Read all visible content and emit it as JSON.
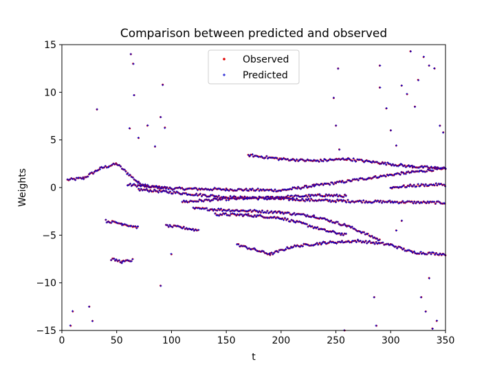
{
  "chart_data": {
    "type": "scatter",
    "title": "Comparison between predicted and observed",
    "xlabel": "t",
    "ylabel": "Weights",
    "xlim": [
      0,
      350
    ],
    "ylim": [
      -15,
      15
    ],
    "xticks": [
      0,
      50,
      100,
      150,
      200,
      250,
      300,
      350
    ],
    "yticks": [
      -15,
      -10,
      -5,
      0,
      5,
      10,
      15
    ],
    "grid": false,
    "legend_position": "top-center",
    "series": [
      {
        "name": "Observed",
        "color": "#e00000",
        "marker": "small dot",
        "description": "Scattered points tracing multiple weight trajectories over t; values range across the full y-axis with dense banded trajectories near -7 to 3 and sparse outliers up to 14 and down to -15."
      },
      {
        "name": "Predicted",
        "color": "#0000cc",
        "marker": "plus",
        "description": "Predicted points closely overlaying the observed trajectories."
      }
    ],
    "trajectories": [
      {
        "x": [
          5,
          20,
          35,
          50,
          60,
          70,
          80,
          95
        ],
        "y": [
          0.8,
          1.0,
          2.0,
          2.5,
          1.5,
          0.5,
          0.1,
          0
        ]
      },
      {
        "x": [
          60,
          100,
          150,
          200,
          230,
          250,
          280,
          310,
          350
        ],
        "y": [
          0.3,
          -0.1,
          -0.2,
          -0.3,
          0.2,
          0.5,
          1.0,
          1.5,
          2.0
        ]
      },
      {
        "x": [
          70,
          100,
          150,
          200,
          250,
          300,
          350
        ],
        "y": [
          -0.2,
          -0.5,
          -1.0,
          -1.2,
          -1.4,
          -1.5,
          -1.6
        ]
      },
      {
        "x": [
          110,
          150,
          200,
          240,
          260
        ],
        "y": [
          -1.5,
          -1.2,
          -1.0,
          -0.8,
          -0.9
        ]
      },
      {
        "x": [
          120,
          160,
          200,
          230,
          260,
          290
        ],
        "y": [
          -2.2,
          -2.4,
          -2.6,
          -3.0,
          -4.0,
          -5.5
        ]
      },
      {
        "x": [
          140,
          170,
          200,
          220,
          240,
          260
        ],
        "y": [
          -2.8,
          -2.9,
          -3.2,
          -3.8,
          -4.5,
          -5.0
        ]
      },
      {
        "x": [
          170,
          200,
          230,
          260,
          290,
          320,
          350
        ],
        "y": [
          3.4,
          3.0,
          2.8,
          3.0,
          2.6,
          2.2,
          2.0
        ]
      },
      {
        "x": [
          160,
          190,
          210,
          240,
          270,
          300,
          320,
          350
        ],
        "y": [
          -6.0,
          -7.0,
          -6.2,
          -5.8,
          -5.6,
          -6.0,
          -6.8,
          -7.0
        ]
      },
      {
        "x": [
          40,
          55,
          70
        ],
        "y": [
          -3.5,
          -3.8,
          -4.2
        ]
      },
      {
        "x": [
          45,
          55,
          65
        ],
        "y": [
          -7.5,
          -7.8,
          -7.6
        ]
      },
      {
        "x": [
          95,
          110,
          125
        ],
        "y": [
          -4.0,
          -4.2,
          -4.5
        ]
      },
      {
        "x": [
          300,
          320,
          340,
          350
        ],
        "y": [
          0,
          0.2,
          0.3,
          0.3
        ]
      }
    ],
    "outliers": [
      {
        "x": 8,
        "y": -14.5
      },
      {
        "x": 10,
        "y": -13
      },
      {
        "x": 25,
        "y": -12.5
      },
      {
        "x": 28,
        "y": -14
      },
      {
        "x": 32,
        "y": 8.2
      },
      {
        "x": 63,
        "y": 14
      },
      {
        "x": 65,
        "y": 13
      },
      {
        "x": 66,
        "y": 9.7
      },
      {
        "x": 62,
        "y": 6.2
      },
      {
        "x": 70,
        "y": 5.2
      },
      {
        "x": 78,
        "y": 6.5
      },
      {
        "x": 85,
        "y": 4.3
      },
      {
        "x": 90,
        "y": 7.4
      },
      {
        "x": 92,
        "y": 10.8
      },
      {
        "x": 94,
        "y": 6.3
      },
      {
        "x": 90,
        "y": -10.3
      },
      {
        "x": 100,
        "y": -7.0
      },
      {
        "x": 252,
        "y": 12.5
      },
      {
        "x": 248,
        "y": 9.4
      },
      {
        "x": 250,
        "y": 6.5
      },
      {
        "x": 253,
        "y": 4.0
      },
      {
        "x": 258,
        "y": -15
      },
      {
        "x": 285,
        "y": -11.5
      },
      {
        "x": 287,
        "y": -14.5
      },
      {
        "x": 290,
        "y": 12.8
      },
      {
        "x": 290,
        "y": 10.5
      },
      {
        "x": 296,
        "y": 8.3
      },
      {
        "x": 300,
        "y": 6.0
      },
      {
        "x": 305,
        "y": 4.4
      },
      {
        "x": 310,
        "y": 10.7
      },
      {
        "x": 315,
        "y": 9.8
      },
      {
        "x": 318,
        "y": 14.3
      },
      {
        "x": 322,
        "y": 8.5
      },
      {
        "x": 325,
        "y": 11.3
      },
      {
        "x": 330,
        "y": 13.7
      },
      {
        "x": 335,
        "y": 12.8
      },
      {
        "x": 340,
        "y": 12.5
      },
      {
        "x": 345,
        "y": 6.5
      },
      {
        "x": 348,
        "y": 5.8
      },
      {
        "x": 328,
        "y": -11.5
      },
      {
        "x": 332,
        "y": -13
      },
      {
        "x": 335,
        "y": -9.5
      },
      {
        "x": 338,
        "y": -14.8
      },
      {
        "x": 342,
        "y": -14
      },
      {
        "x": 310,
        "y": -3.5
      },
      {
        "x": 305,
        "y": -4.5
      }
    ]
  }
}
